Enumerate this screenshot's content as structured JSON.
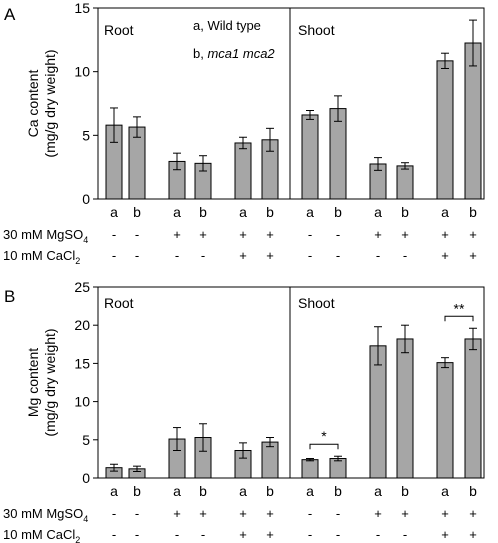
{
  "chart_data": [
    {
      "panel_label": "A",
      "type": "bar",
      "ylabel_line1": "Ca content",
      "ylabel_line2": "(mg/g dry weight)",
      "ylim": [
        0,
        15
      ],
      "yticks": [
        0,
        5,
        10,
        15
      ],
      "sections": [
        "Root",
        "Shoot"
      ],
      "legend": [
        "a, Wild type",
        "b, mca1 mca2"
      ],
      "categories": [
        "a",
        "b",
        "a",
        "b",
        "a",
        "b",
        "a",
        "b",
        "a",
        "b",
        "a",
        "b"
      ],
      "values": [
        5.8,
        5.65,
        2.95,
        2.8,
        4.4,
        4.65,
        6.6,
        7.1,
        2.75,
        2.6,
        10.85,
        12.25
      ],
      "errors": [
        1.35,
        0.8,
        0.65,
        0.6,
        0.45,
        0.9,
        0.35,
        1.0,
        0.5,
        0.25,
        0.6,
        1.8
      ],
      "annotations": [],
      "grid": false
    },
    {
      "panel_label": "B",
      "type": "bar",
      "ylabel_line1": "Mg content",
      "ylabel_line2": "(mg/g dry weight)",
      "ylim": [
        0,
        25
      ],
      "yticks": [
        0,
        5,
        10,
        15,
        20,
        25
      ],
      "sections": [
        "Root",
        "Shoot"
      ],
      "legend": [],
      "categories": [
        "a",
        "b",
        "a",
        "b",
        "a",
        "b",
        "a",
        "b",
        "a",
        "b",
        "a",
        "b"
      ],
      "values": [
        1.35,
        1.2,
        5.1,
        5.3,
        3.6,
        4.7,
        2.4,
        2.55,
        17.3,
        18.2,
        15.1,
        18.2
      ],
      "errors": [
        0.45,
        0.35,
        1.5,
        1.8,
        1.0,
        0.6,
        0.15,
        0.3,
        2.5,
        1.8,
        0.65,
        1.4
      ],
      "annotations": [
        {
          "text": "*",
          "bars": [
            6,
            7
          ]
        },
        {
          "text": "**",
          "bars": [
            10,
            11
          ]
        }
      ],
      "grid": false
    }
  ],
  "conditions": {
    "mgso4_label": "30 mM MgSO",
    "mgso4_sub": "4",
    "cacl2_label": "10 mM CaCl",
    "cacl2_sub": "2",
    "mgso4_signs": [
      "-",
      "-",
      "+",
      "+",
      "+",
      "+",
      "-",
      "-",
      "+",
      "+",
      "+",
      "+"
    ],
    "cacl2_signs": [
      "-",
      "-",
      "-",
      "-",
      "+",
      "+",
      "-",
      "-",
      "-",
      "-",
      "+",
      "+"
    ]
  },
  "colors": {
    "bar_fill": "#a6a6a6",
    "bar_stroke": "#000000"
  }
}
